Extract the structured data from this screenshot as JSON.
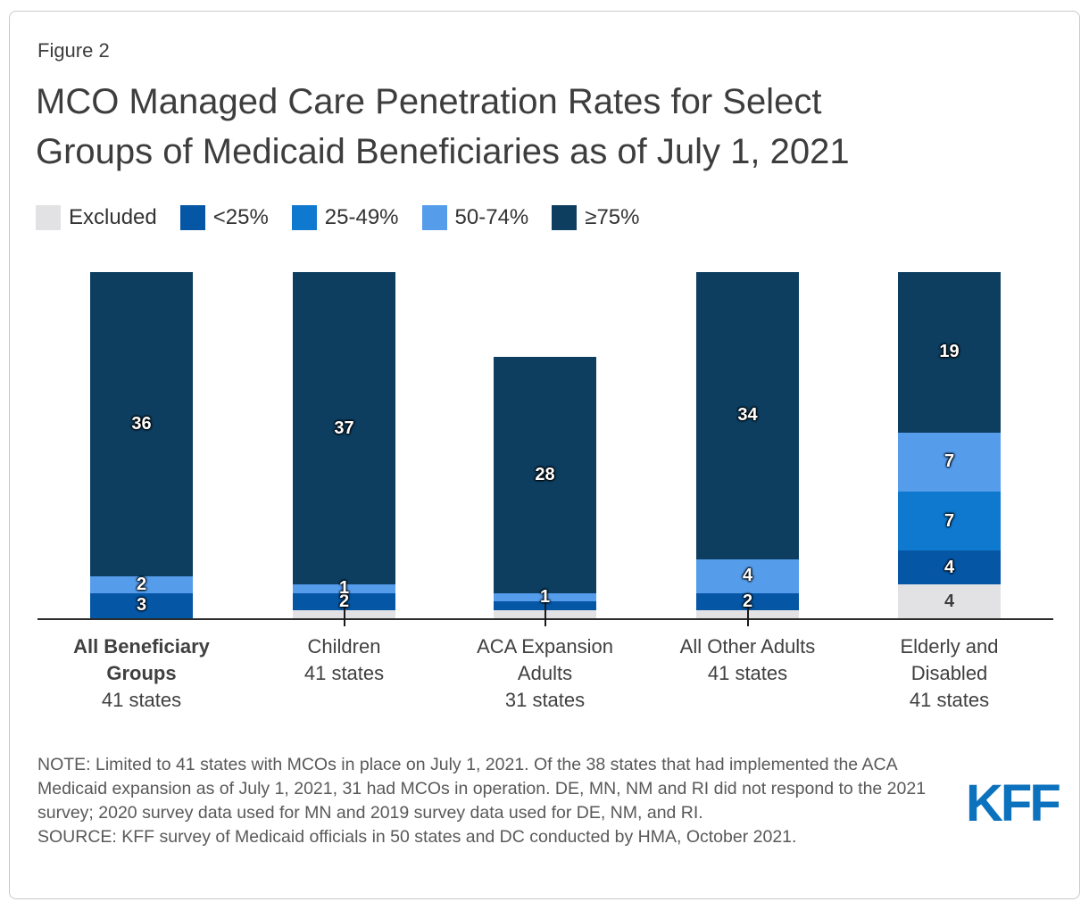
{
  "figure_label": "Figure 2",
  "title_line1": "MCO Managed Care Penetration Rates for Select",
  "title_line2": "Groups of Medicaid Beneficiaries as of July 1, 2021",
  "legend": {
    "items": [
      {
        "label": "Excluded"
      },
      {
        "label": "<25%"
      },
      {
        "label": "25-49%"
      },
      {
        "label": "50-74%"
      },
      {
        "label": "≥75%"
      }
    ]
  },
  "chart_data": {
    "type": "bar",
    "subtype": "stacked-vertical",
    "unit": "states",
    "value_axis": {
      "min": 0,
      "max": 41,
      "visible": false,
      "gridlines": false
    },
    "legend_position": "top",
    "categories": [
      {
        "name": "All Beneficiary Groups",
        "states": "41 states",
        "total": 41,
        "bold": true
      },
      {
        "name": "Children",
        "states": "41 states",
        "total": 41,
        "bold": false
      },
      {
        "name": "ACA Expansion Adults",
        "states": "31 states",
        "total": 31,
        "bold": false
      },
      {
        "name": "All Other Adults",
        "states": "41 states",
        "total": 41,
        "bold": false
      },
      {
        "name": "Elderly and Disabled",
        "states": "41 states",
        "total": 41,
        "bold": false
      }
    ],
    "series": [
      {
        "name": "Excluded",
        "color": "#e2e2e4",
        "label_style": "dark",
        "values": [
          0,
          1,
          1,
          1,
          4
        ],
        "labels": [
          "",
          "",
          "",
          "",
          "4"
        ]
      },
      {
        "name": "<25%",
        "color": "#0556a5",
        "label_style": "light",
        "values": [
          3,
          2,
          1,
          2,
          4
        ],
        "labels": [
          "3",
          "2",
          "",
          "2",
          "4"
        ]
      },
      {
        "name": "25-49%",
        "color": "#0e79cf",
        "label_style": "light",
        "values": [
          0,
          0,
          0,
          0,
          7
        ],
        "labels": [
          "",
          "",
          "",
          "",
          "7"
        ]
      },
      {
        "name": "50-74%",
        "color": "#559ceb",
        "label_style": "light",
        "values": [
          2,
          1,
          1,
          4,
          7
        ],
        "labels": [
          "2",
          "1",
          "1",
          "4",
          "7"
        ]
      },
      {
        "name": "≥75%",
        "color": "#0d3d5f",
        "label_style": "light",
        "values": [
          36,
          37,
          28,
          34,
          19
        ],
        "labels": [
          "36",
          "37",
          "28",
          "34",
          "19"
        ]
      }
    ],
    "leader_lines": [
      false,
      true,
      true,
      true,
      false
    ]
  },
  "note": "NOTE: Limited to 41 states with MCOs in place on July 1, 2021. Of the 38 states that had implemented the ACA Medicaid expansion as of July 1, 2021, 31 had MCOs in operation. DE, MN, NM and RI did not respond to the 2021 survey; 2020 survey data used for MN and 2019 survey data used for DE, NM, and RI.",
  "source": "SOURCE: KFF survey of Medicaid officials in 50 states and DC conducted by HMA, October 2021.",
  "logo_text": "KFF",
  "colors": {
    "kff_blue": "#0d72bd",
    "axis": "#2b2b2b",
    "title_text": "#3d3d3d",
    "note_text": "#595959"
  }
}
